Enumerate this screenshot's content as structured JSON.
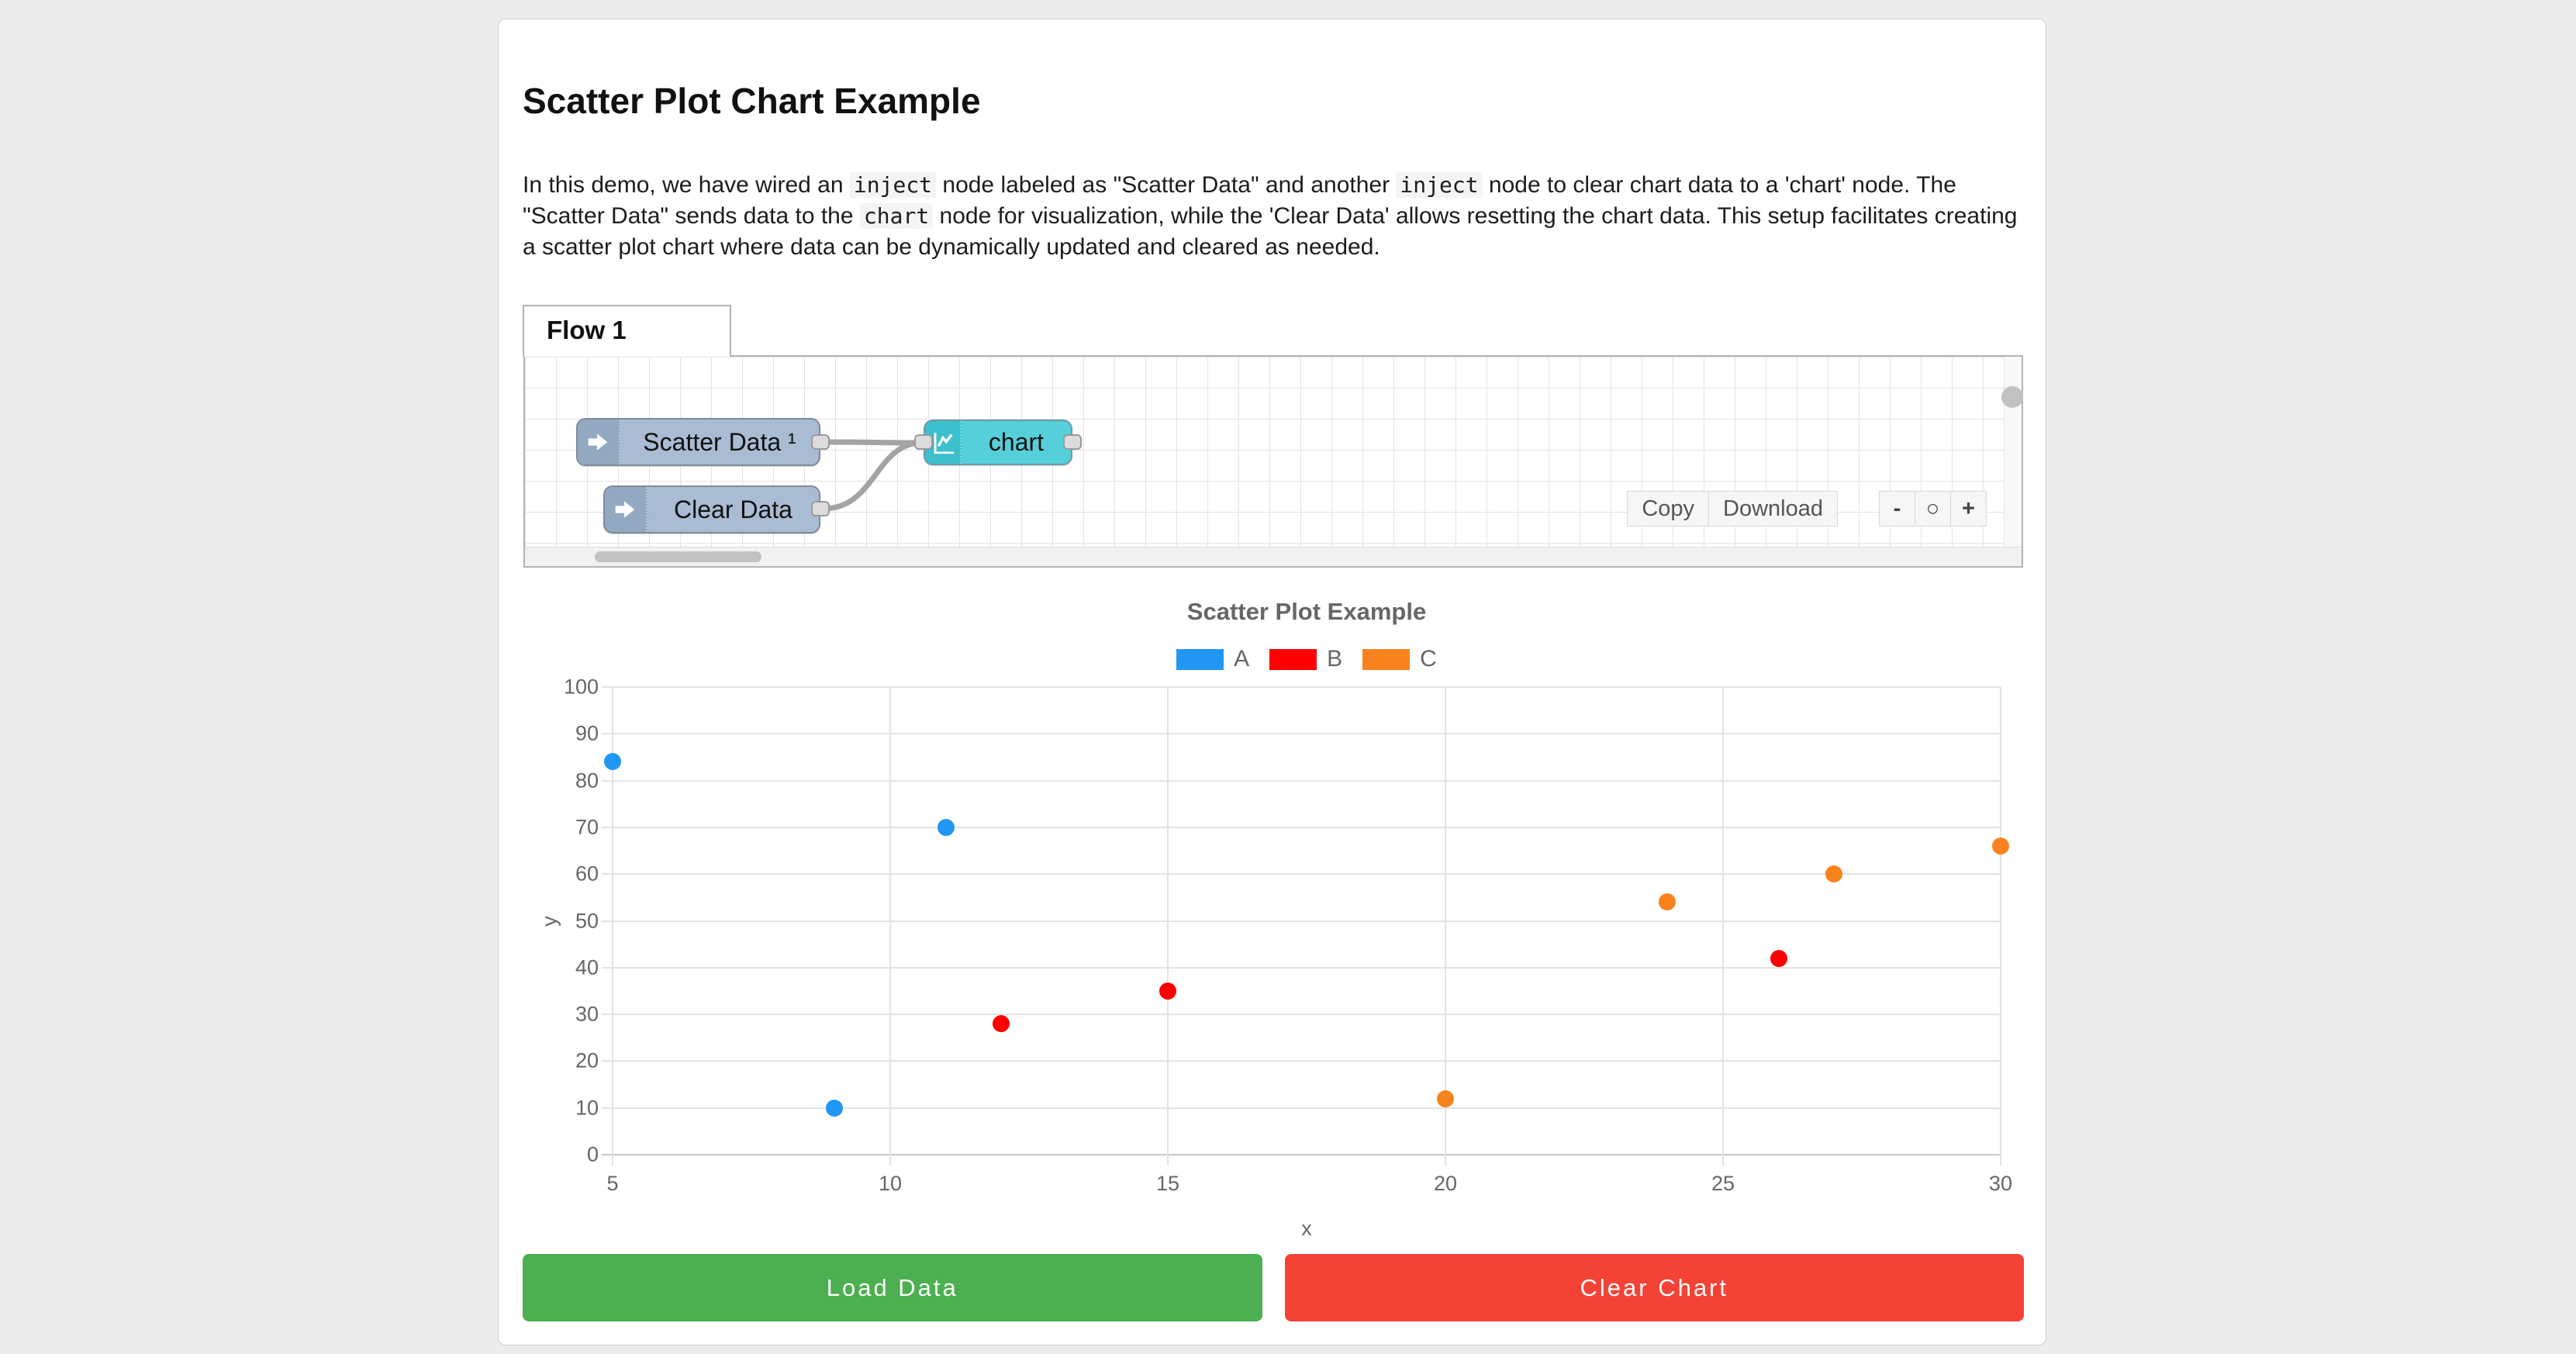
{
  "page": {
    "title": "Scatter Plot Chart Example"
  },
  "intro": {
    "segments": [
      {
        "code": false,
        "text": "In this demo, we have wired an "
      },
      {
        "code": true,
        "text": "inject"
      },
      {
        "code": false,
        "text": " node labeled as \"Scatter Data\" and another "
      },
      {
        "code": true,
        "text": "inject"
      },
      {
        "code": false,
        "text": " node to clear chart data to a 'chart' node. The \"Scatter Data\" sends data to the "
      },
      {
        "code": true,
        "text": "chart"
      },
      {
        "code": false,
        "text": " node for visualization, while the 'Clear Data' allows resetting the chart data. This setup facilitates creating a scatter plot chart where data can be dynamically updated and cleared as needed."
      }
    ]
  },
  "flow": {
    "tab_label": "Flow 1",
    "nodes": [
      {
        "id": "scatter-data",
        "type": "inject",
        "label": "Scatter Data ¹"
      },
      {
        "id": "clear-data",
        "type": "inject",
        "label": "Clear Data"
      },
      {
        "id": "chart",
        "type": "chart",
        "label": "chart"
      }
    ],
    "toolbar": {
      "copy_label": "Copy",
      "download_label": "Download",
      "zoom_out_label": "-",
      "zoom_reset_label": "○",
      "zoom_in_label": "+"
    }
  },
  "chart_data": {
    "type": "scatter",
    "title": "Scatter Plot Example",
    "xlabel": "x",
    "ylabel": "y",
    "xlim": [
      5,
      30
    ],
    "ylim": [
      0,
      100
    ],
    "x_ticks": [
      5,
      10,
      15,
      20,
      25,
      30
    ],
    "y_ticks": [
      0,
      10,
      20,
      30,
      40,
      50,
      60,
      70,
      80,
      90,
      100
    ],
    "grid": true,
    "legend_position": "top",
    "series": [
      {
        "name": "A",
        "color": "#2196f3",
        "points": [
          [
            5,
            84
          ],
          [
            9,
            10
          ],
          [
            11,
            70
          ]
        ]
      },
      {
        "name": "B",
        "color": "#ff0000",
        "points": [
          [
            12,
            28
          ],
          [
            15,
            35
          ],
          [
            26,
            42
          ]
        ]
      },
      {
        "name": "C",
        "color": "#f8821d",
        "points": [
          [
            20,
            12
          ],
          [
            24,
            54
          ],
          [
            27,
            60
          ],
          [
            30,
            66
          ]
        ]
      }
    ]
  },
  "actions": {
    "load_label": "Load Data",
    "clear_label": "Clear Chart"
  },
  "colors": {
    "inject_node": "#a9bcd4",
    "inject_icon_area": "#93a9c2",
    "chart_node": "#55cfda",
    "chart_icon_area": "#3cc0ce",
    "wire": "#a4a4a4",
    "load_button": "#4caf50",
    "clear_button": "#f44336"
  }
}
